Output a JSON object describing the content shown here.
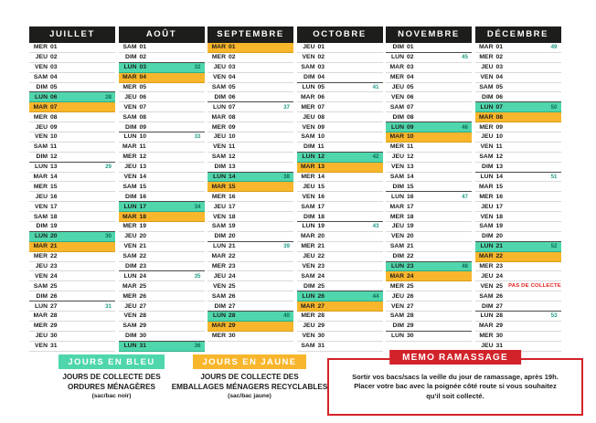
{
  "colors": {
    "teal": "#4FD6AC",
    "yellow": "#F8B62C",
    "red": "#D2232A",
    "header_black": "#1D1D1B",
    "week_number": "#1F9B85",
    "no_collect_red": "#E52320"
  },
  "days_format": [
    "day_abbrev",
    "day_number",
    "highlight(t=teal,j=jaune)",
    "week_number",
    "note"
  ],
  "months": [
    {
      "name": "JUILLET",
      "days": [
        [
          "MER",
          "01"
        ],
        [
          "JEU",
          "02"
        ],
        [
          "VEN",
          "03"
        ],
        [
          "SAM",
          "04"
        ],
        [
          "DIM",
          "05"
        ],
        [
          "LUN",
          "06",
          "t",
          "28"
        ],
        [
          "MAR",
          "07",
          "j"
        ],
        [
          "MER",
          "08"
        ],
        [
          "JEU",
          "09"
        ],
        [
          "VEN",
          "10"
        ],
        [
          "SAM",
          "11"
        ],
        [
          "DIM",
          "12"
        ],
        [
          "LUN",
          "13",
          "",
          "29"
        ],
        [
          "MAR",
          "14"
        ],
        [
          "MER",
          "15"
        ],
        [
          "JEU",
          "16"
        ],
        [
          "VEN",
          "17"
        ],
        [
          "SAM",
          "18"
        ],
        [
          "DIM",
          "19"
        ],
        [
          "LUN",
          "20",
          "t",
          "30"
        ],
        [
          "MAR",
          "21",
          "j"
        ],
        [
          "MER",
          "22"
        ],
        [
          "JEU",
          "23"
        ],
        [
          "VEN",
          "24"
        ],
        [
          "SAM",
          "25"
        ],
        [
          "DIM",
          "26"
        ],
        [
          "LUN",
          "27",
          "",
          "31"
        ],
        [
          "MAR",
          "28"
        ],
        [
          "MER",
          "29"
        ],
        [
          "JEU",
          "30"
        ],
        [
          "VEN",
          "31"
        ]
      ]
    },
    {
      "name": "AOÛT",
      "days": [
        [
          "SAM",
          "01"
        ],
        [
          "DIM",
          "02"
        ],
        [
          "LUN",
          "03",
          "t",
          "32"
        ],
        [
          "MAR",
          "04",
          "j"
        ],
        [
          "MER",
          "05"
        ],
        [
          "JEU",
          "06"
        ],
        [
          "VEN",
          "07"
        ],
        [
          "SAM",
          "08"
        ],
        [
          "DIM",
          "09"
        ],
        [
          "LUN",
          "10",
          "",
          "33"
        ],
        [
          "MAR",
          "11"
        ],
        [
          "MER",
          "12"
        ],
        [
          "JEU",
          "13"
        ],
        [
          "VEN",
          "14"
        ],
        [
          "SAM",
          "15"
        ],
        [
          "DIM",
          "16"
        ],
        [
          "LUN",
          "17",
          "t",
          "34"
        ],
        [
          "MAR",
          "18",
          "j"
        ],
        [
          "MER",
          "19"
        ],
        [
          "JEU",
          "20"
        ],
        [
          "VEN",
          "21"
        ],
        [
          "SAM",
          "22"
        ],
        [
          "DIM",
          "23"
        ],
        [
          "LUN",
          "24",
          "",
          "35"
        ],
        [
          "MAR",
          "25"
        ],
        [
          "MER",
          "26"
        ],
        [
          "JEU",
          "27"
        ],
        [
          "VEN",
          "28"
        ],
        [
          "SAM",
          "29"
        ],
        [
          "DIM",
          "30"
        ],
        [
          "LUN",
          "31",
          "t",
          "36"
        ]
      ]
    },
    {
      "name": "SEPTEMBRE",
      "days": [
        [
          "MAR",
          "01",
          "j"
        ],
        [
          "MER",
          "02"
        ],
        [
          "JEU",
          "03"
        ],
        [
          "VEN",
          "04"
        ],
        [
          "SAM",
          "05"
        ],
        [
          "DIM",
          "06"
        ],
        [
          "LUN",
          "07",
          "",
          "37"
        ],
        [
          "MAR",
          "08"
        ],
        [
          "MER",
          "09"
        ],
        [
          "JEU",
          "10"
        ],
        [
          "VEN",
          "11"
        ],
        [
          "SAM",
          "12"
        ],
        [
          "DIM",
          "13"
        ],
        [
          "LUN",
          "14",
          "t",
          "38"
        ],
        [
          "MAR",
          "15",
          "j"
        ],
        [
          "MER",
          "16"
        ],
        [
          "JEU",
          "17"
        ],
        [
          "VEN",
          "18"
        ],
        [
          "SAM",
          "19"
        ],
        [
          "DIM",
          "20"
        ],
        [
          "LUN",
          "21",
          "",
          "39"
        ],
        [
          "MAR",
          "22"
        ],
        [
          "MER",
          "23"
        ],
        [
          "JEU",
          "24"
        ],
        [
          "VEN",
          "25"
        ],
        [
          "SAM",
          "26"
        ],
        [
          "DIM",
          "27"
        ],
        [
          "LUN",
          "28",
          "t",
          "40"
        ],
        [
          "MAR",
          "29",
          "j"
        ],
        [
          "MER",
          "30"
        ]
      ]
    },
    {
      "name": "OCTOBRE",
      "days": [
        [
          "JEU",
          "01"
        ],
        [
          "VEN",
          "02"
        ],
        [
          "SAM",
          "03"
        ],
        [
          "DIM",
          "04"
        ],
        [
          "LUN",
          "05",
          "",
          "41"
        ],
        [
          "MAR",
          "06"
        ],
        [
          "MER",
          "07"
        ],
        [
          "JEU",
          "08"
        ],
        [
          "VEN",
          "09"
        ],
        [
          "SAM",
          "10"
        ],
        [
          "DIM",
          "11"
        ],
        [
          "LUN",
          "12",
          "t",
          "42"
        ],
        [
          "MAR",
          "13",
          "j"
        ],
        [
          "MER",
          "14"
        ],
        [
          "JEU",
          "15"
        ],
        [
          "VEN",
          "16"
        ],
        [
          "SAM",
          "17"
        ],
        [
          "DIM",
          "18"
        ],
        [
          "LUN",
          "19",
          "",
          "43"
        ],
        [
          "MAR",
          "20"
        ],
        [
          "MER",
          "21"
        ],
        [
          "JEU",
          "22"
        ],
        [
          "VEN",
          "23"
        ],
        [
          "SAM",
          "24"
        ],
        [
          "DIM",
          "25"
        ],
        [
          "LUN",
          "26",
          "t",
          "44"
        ],
        [
          "MAR",
          "27",
          "j"
        ],
        [
          "MER",
          "28"
        ],
        [
          "JEU",
          "29"
        ],
        [
          "VEN",
          "30"
        ],
        [
          "SAM",
          "31"
        ]
      ]
    },
    {
      "name": "NOVEMBRE",
      "days": [
        [
          "DIM",
          "01"
        ],
        [
          "LUN",
          "02",
          "",
          "45"
        ],
        [
          "MAR",
          "03"
        ],
        [
          "MER",
          "04"
        ],
        [
          "JEU",
          "05"
        ],
        [
          "VEN",
          "06"
        ],
        [
          "SAM",
          "07"
        ],
        [
          "DIM",
          "08"
        ],
        [
          "LUN",
          "09",
          "t",
          "46"
        ],
        [
          "MAR",
          "10",
          "j"
        ],
        [
          "MER",
          "11"
        ],
        [
          "JEU",
          "12"
        ],
        [
          "VEN",
          "13"
        ],
        [
          "SAM",
          "14"
        ],
        [
          "DIM",
          "15"
        ],
        [
          "LUN",
          "16",
          "",
          "47"
        ],
        [
          "MAR",
          "17"
        ],
        [
          "MER",
          "18"
        ],
        [
          "JEU",
          "19"
        ],
        [
          "VEN",
          "20"
        ],
        [
          "SAM",
          "21"
        ],
        [
          "DIM",
          "22"
        ],
        [
          "LUN",
          "23",
          "t",
          "48"
        ],
        [
          "MAR",
          "24",
          "j"
        ],
        [
          "MER",
          "25"
        ],
        [
          "JEU",
          "26"
        ],
        [
          "VEN",
          "27"
        ],
        [
          "SAM",
          "28"
        ],
        [
          "DIM",
          "29"
        ],
        [
          "LUN",
          "30"
        ]
      ]
    },
    {
      "name": "DÉCEMBRE",
      "days": [
        [
          "MAR",
          "01",
          "",
          "49"
        ],
        [
          "MER",
          "02"
        ],
        [
          "JEU",
          "03"
        ],
        [
          "VEN",
          "04"
        ],
        [
          "SAM",
          "05"
        ],
        [
          "DIM",
          "06"
        ],
        [
          "LUN",
          "07",
          "t",
          "50"
        ],
        [
          "MAR",
          "08",
          "j"
        ],
        [
          "MER",
          "09"
        ],
        [
          "JEU",
          "10"
        ],
        [
          "VEN",
          "11"
        ],
        [
          "SAM",
          "12"
        ],
        [
          "DIM",
          "13"
        ],
        [
          "LUN",
          "14",
          "",
          "51"
        ],
        [
          "MAR",
          "15"
        ],
        [
          "MER",
          "16"
        ],
        [
          "JEU",
          "17"
        ],
        [
          "VEN",
          "18"
        ],
        [
          "SAM",
          "19"
        ],
        [
          "DIM",
          "20"
        ],
        [
          "LUN",
          "21",
          "t",
          "52"
        ],
        [
          "MAR",
          "22",
          "j"
        ],
        [
          "MER",
          "23"
        ],
        [
          "JEU",
          "24"
        ],
        [
          "VEN",
          "25",
          "",
          "",
          "PAS DE COLLECTE"
        ],
        [
          "SAM",
          "26"
        ],
        [
          "DIM",
          "27"
        ],
        [
          "LUN",
          "28",
          "",
          "53"
        ],
        [
          "MAR",
          "29"
        ],
        [
          "MER",
          "30"
        ],
        [
          "JEU",
          "31"
        ]
      ]
    }
  ],
  "legend": {
    "blue": {
      "badge": "JOURS EN BLEU",
      "line1": "JOURS DE COLLECTE DES",
      "line2": "ORDURES MÉNAGÈRES",
      "line3": "(sac/bac noir)"
    },
    "yellow": {
      "badge": "JOURS EN JAUNE",
      "line1": "JOURS DE COLLECTE DES",
      "line2": "EMBALLAGES MÉNAGERS RECYCLABLES",
      "line3": "(sac/bac jaune)"
    }
  },
  "memo": {
    "title": "MEMO RAMASSAGE",
    "line1": "Sortir vos bacs/sacs la veille du jour de ramassage, après 19h.",
    "line2": "Placer votre bac avec la poignée côté route si vous souhaitez",
    "line3": "qu'il soit collecté."
  }
}
